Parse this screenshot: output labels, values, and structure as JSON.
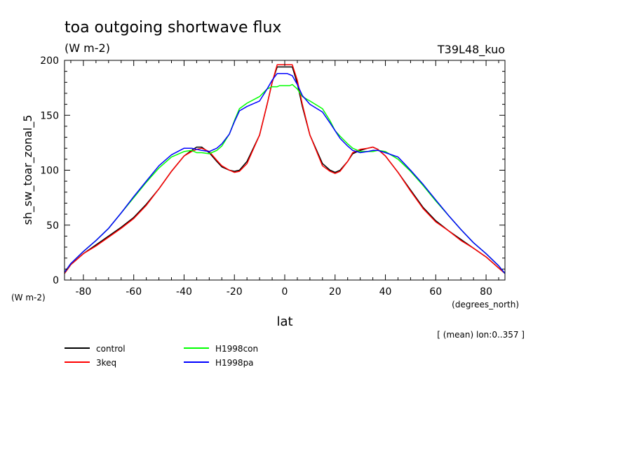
{
  "chart_data": {
    "type": "line",
    "title": "toa outgoing shortwave flux",
    "units": "(W m-2)",
    "run_label": "T39L48_kuo",
    "ylabel": "sh_sw_toar_zonal_5",
    "yunits": "(W m-2)",
    "xlabel": "lat",
    "xunits": "(degrees_north)",
    "note": "[ (mean) lon:0..357 ]",
    "xlim": [
      -87.5,
      87.5
    ],
    "ylim": [
      0,
      200
    ],
    "xticks": [
      -80,
      -60,
      -40,
      -20,
      0,
      20,
      40,
      60,
      80
    ],
    "yticks": [
      0,
      50,
      100,
      150,
      200
    ],
    "x": [
      -87.5,
      -85,
      -80,
      -75,
      -70,
      -65,
      -60,
      -55,
      -50,
      -45,
      -40,
      -37,
      -35,
      -33,
      -30,
      -27,
      -25,
      -22,
      -20,
      -18,
      -15,
      -10,
      -7,
      -5,
      -3,
      -2,
      -1,
      0,
      1,
      2,
      3,
      5,
      7,
      10,
      15,
      18,
      20,
      22,
      25,
      27,
      30,
      33,
      35,
      37,
      40,
      45,
      50,
      55,
      60,
      65,
      70,
      75,
      80,
      85,
      87.5
    ],
    "series": [
      {
        "name": "control",
        "color": "#000000",
        "values": [
          6,
          14,
          24,
          32,
          40,
          48,
          57,
          69,
          83,
          99,
          113,
          118,
          121,
          121,
          116,
          108,
          103,
          100,
          99,
          100,
          108,
          132,
          160,
          180,
          194,
          194,
          194,
          194,
          194,
          194,
          194,
          179,
          158,
          132,
          106,
          100,
          98,
          100,
          108,
          115,
          118,
          120,
          121,
          119,
          113,
          98,
          82,
          66,
          54,
          45,
          37,
          29,
          21,
          11,
          6
        ]
      },
      {
        "name": "3keq",
        "color": "#ff0000",
        "values": [
          6,
          14,
          24,
          31,
          39,
          47,
          56,
          68,
          83,
          99,
          113,
          117,
          119,
          120,
          117,
          109,
          104,
          100,
          98,
          99,
          106,
          132,
          160,
          180,
          196,
          196,
          196,
          196,
          196,
          196,
          196,
          182,
          160,
          132,
          104,
          99,
          97,
          99,
          108,
          116,
          119,
          120,
          121,
          119,
          113,
          98,
          81,
          65,
          53,
          45,
          36,
          29,
          21,
          11,
          6
        ]
      },
      {
        "name": "H1998con",
        "color": "#00ff00",
        "values": [
          7,
          15,
          26,
          36,
          47,
          61,
          75,
          89,
          102,
          112,
          117,
          118,
          116,
          116,
          115,
          118,
          122,
          133,
          145,
          156,
          161,
          167,
          174,
          176,
          176,
          177,
          177,
          177,
          177,
          177,
          178,
          174,
          167,
          163,
          156,
          145,
          136,
          131,
          124,
          120,
          117,
          117,
          117,
          118,
          117,
          110,
          99,
          86,
          72,
          59,
          46,
          34,
          24,
          13,
          6
        ]
      },
      {
        "name": "H1998pa",
        "color": "#0000ff",
        "values": [
          7,
          15,
          26,
          36,
          47,
          61,
          76,
          90,
          104,
          114,
          120,
          120,
          119,
          118,
          117,
          120,
          124,
          133,
          144,
          154,
          158,
          163,
          174,
          182,
          188,
          188,
          188,
          188,
          188,
          187,
          186,
          178,
          168,
          160,
          153,
          143,
          136,
          129,
          122,
          118,
          116,
          117,
          118,
          118,
          116,
          112,
          100,
          87,
          73,
          59,
          46,
          34,
          24,
          13,
          6
        ]
      }
    ]
  }
}
